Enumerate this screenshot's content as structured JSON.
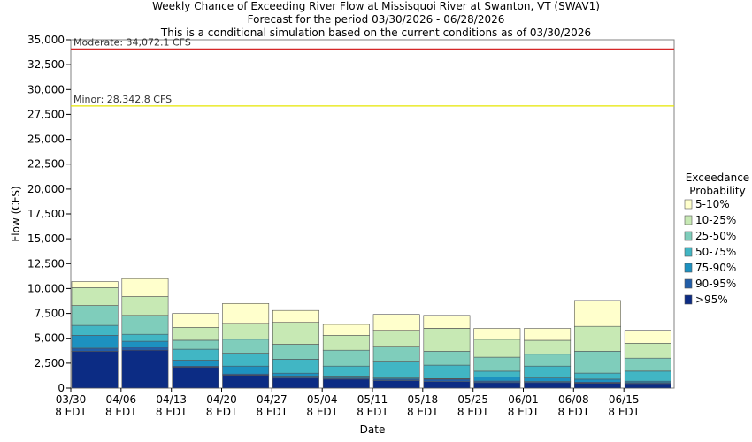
{
  "header": {
    "title": "Weekly Chance of Exceeding River Flow at Missisquoi River at Swanton, VT (SWAV1)",
    "subtitle1": "Forecast for the period 03/30/2026 - 06/28/2026",
    "subtitle2": "This is a conditional simulation based on the current conditions as of 03/30/2026"
  },
  "chart_data": {
    "type": "bar",
    "stacked": true,
    "xlabel": "Date",
    "ylabel": "Flow (CFS)",
    "ylim": [
      0,
      35000
    ],
    "yticks": [
      0,
      2500,
      5000,
      7500,
      10000,
      12500,
      15000,
      17500,
      20000,
      22500,
      25000,
      27500,
      30000,
      32500,
      35000
    ],
    "ytick_labels": [
      "0",
      "2,500",
      "5,000",
      "7,500",
      "10,000",
      "12,500",
      "15,000",
      "17,500",
      "20,000",
      "22,500",
      "25,000",
      "27,500",
      "30,000",
      "32,500",
      "35,000"
    ],
    "grid": false,
    "categories": [
      {
        "line1": "03/30",
        "line2": "8 EDT"
      },
      {
        "line1": "04/06",
        "line2": "8 EDT"
      },
      {
        "line1": "04/13",
        "line2": "8 EDT"
      },
      {
        "line1": "04/20",
        "line2": "8 EDT"
      },
      {
        "line1": "04/27",
        "line2": "8 EDT"
      },
      {
        "line1": "05/04",
        "line2": "8 EDT"
      },
      {
        "line1": "05/11",
        "line2": "8 EDT"
      },
      {
        "line1": "05/18",
        "line2": "8 EDT"
      },
      {
        "line1": "05/25",
        "line2": "8 EDT"
      },
      {
        "line1": "06/01",
        "line2": "8 EDT"
      },
      {
        "line1": "06/08",
        "line2": "8 EDT"
      },
      {
        "line1": "06/15",
        "line2": "8 EDT"
      }
    ],
    "legend": {
      "title_line1": "Exceedance",
      "title_line2": "Probability",
      "placement": "right"
    },
    "series": [
      {
        "name": ">95%",
        "color": "#0c2c84",
        "top_values": [
          3700,
          3800,
          2100,
          1300,
          1000,
          900,
          750,
          650,
          550,
          550,
          500,
          450
        ]
      },
      {
        "name": "90-95%",
        "color": "#225ea8",
        "top_values": [
          4000,
          4100,
          2200,
          1400,
          1200,
          1000,
          900,
          900,
          700,
          650,
          600,
          550
        ]
      },
      {
        "name": "75-90%",
        "color": "#1d91c0",
        "top_values": [
          5300,
          4700,
          2800,
          2200,
          1500,
          1200,
          1000,
          950,
          1100,
          1000,
          900,
          700
        ]
      },
      {
        "name": "50-75%",
        "color": "#41b6c4",
        "top_values": [
          6300,
          5400,
          3900,
          3500,
          2900,
          2200,
          2700,
          2300,
          1700,
          2200,
          1500,
          1700
        ]
      },
      {
        "name": "25-50%",
        "color": "#7fcdbb",
        "top_values": [
          8300,
          7300,
          4800,
          4900,
          4400,
          3800,
          4200,
          3700,
          3100,
          3400,
          3700,
          3000
        ]
      },
      {
        "name": "10-25%",
        "color": "#c7e9b4",
        "top_values": [
          10100,
          9200,
          6100,
          6500,
          6600,
          5300,
          5800,
          6000,
          4900,
          4800,
          6200,
          4500
        ]
      },
      {
        "name": "5-10%",
        "color": "#ffffcc",
        "top_values": [
          10700,
          11000,
          7500,
          8500,
          7800,
          6400,
          7400,
          7300,
          6000,
          6000,
          8800,
          5800
        ]
      }
    ],
    "thresholds": [
      {
        "label": "Moderate: 34,072.1 CFS",
        "value": 34072.1,
        "color": "#d62728"
      },
      {
        "label": "Minor: 28,342.8 CFS",
        "value": 28342.8,
        "color": "#e6e600"
      }
    ]
  }
}
